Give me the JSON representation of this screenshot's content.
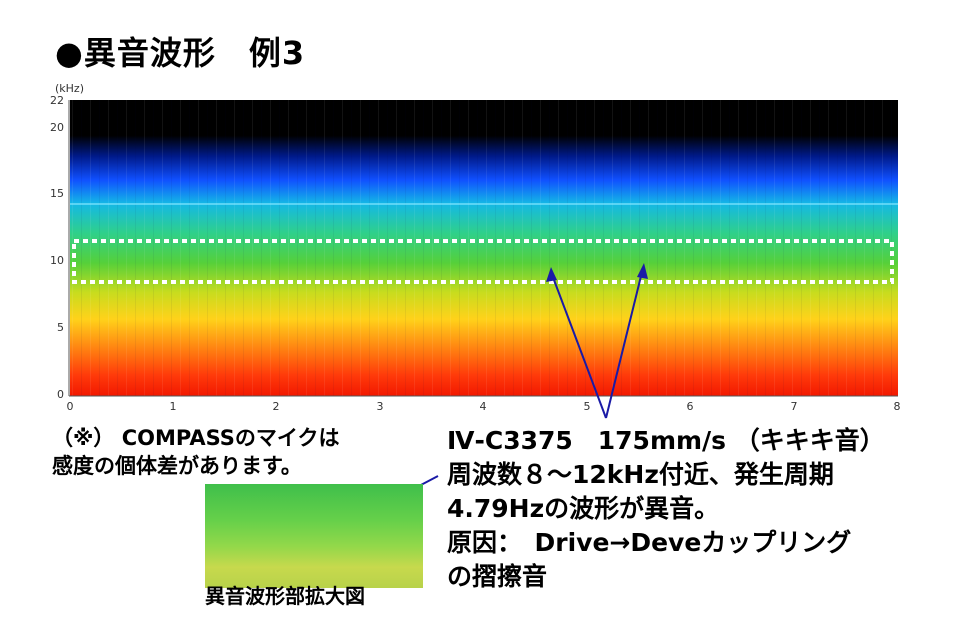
{
  "title": "●異音波形　例3",
  "spectrogram": {
    "unit": "(kHz)",
    "y_ticks": [
      "22",
      "20",
      "15",
      "10",
      "5",
      "0"
    ],
    "x_ticks": [
      "0",
      "1",
      "2",
      "3",
      "4",
      "5",
      "6",
      "7",
      "8"
    ],
    "highlight_range_khz": [
      8.5,
      11.5
    ]
  },
  "note": {
    "line1": "（※） COMPASSのマイクは",
    "line2": "感度の個体差があります。"
  },
  "zoom": {
    "label": "異音波形部拡大図"
  },
  "description": {
    "line1": "Ⅳ-C3375　175mm/s （キキキ音）",
    "line2": "周波数８～12kHz付近、発生周期",
    "line3": "4.79Hzの波形が異音。",
    "line4": "原因：　Drive→Deveカップリング",
    "line5": "の摺擦音"
  },
  "colors": {
    "highlight": "#ffffff",
    "arrow": "#1a1aa6"
  }
}
